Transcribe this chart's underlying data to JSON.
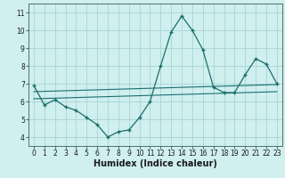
{
  "title": "",
  "xlabel": "Humidex (Indice chaleur)",
  "ylabel": "",
  "bg_color": "#d0efef",
  "grid_color": "#a8d4d4",
  "line_color": "#1a6e6e",
  "xlim": [
    -0.5,
    23.5
  ],
  "ylim": [
    3.5,
    11.5
  ],
  "xticks": [
    0,
    1,
    2,
    3,
    4,
    5,
    6,
    7,
    8,
    9,
    10,
    11,
    12,
    13,
    14,
    15,
    16,
    17,
    18,
    19,
    20,
    21,
    22,
    23
  ],
  "yticks": [
    4,
    5,
    6,
    7,
    8,
    9,
    10,
    11
  ],
  "line1_x": [
    0,
    1,
    2,
    3,
    4,
    5,
    6,
    7,
    8,
    9,
    10,
    11,
    12,
    13,
    14,
    15,
    16,
    17,
    18,
    19,
    20,
    21,
    22,
    23
  ],
  "line1_y": [
    6.9,
    5.8,
    6.1,
    5.7,
    5.5,
    5.1,
    4.7,
    4.0,
    4.3,
    4.4,
    5.1,
    6.0,
    8.0,
    9.9,
    10.8,
    10.0,
    8.9,
    6.8,
    6.5,
    6.5,
    7.5,
    8.4,
    8.1,
    7.0
  ],
  "line2_x": [
    0,
    23
  ],
  "line2_y": [
    6.15,
    6.55
  ],
  "line3_x": [
    0,
    23
  ],
  "line3_y": [
    6.55,
    6.95
  ],
  "tick_fontsize": 5.5,
  "xlabel_fontsize": 7
}
